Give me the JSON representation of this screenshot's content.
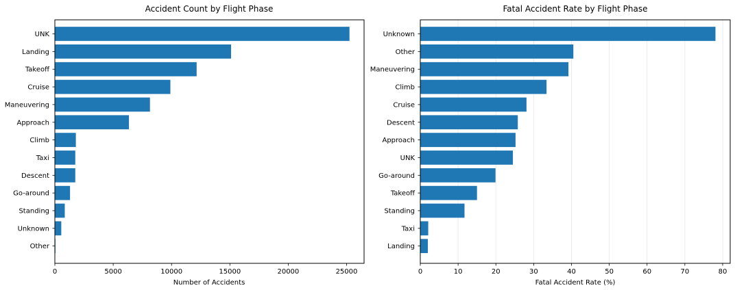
{
  "chart_data": [
    {
      "type": "bar",
      "orientation": "horizontal",
      "title": "Accident Count by Flight Phase",
      "xlabel": "Number of Accidents",
      "ylabel": "",
      "categories": [
        "UNK",
        "Landing",
        "Takeoff",
        "Cruise",
        "Maneuvering",
        "Approach",
        "Climb",
        "Taxi",
        "Descent",
        "Go-around",
        "Standing",
        "Unknown",
        "Other"
      ],
      "values": [
        25250,
        15100,
        12150,
        9900,
        8150,
        6350,
        1800,
        1750,
        1750,
        1300,
        850,
        550,
        50
      ],
      "xlim": [
        0,
        26500
      ],
      "xticks": [
        0,
        5000,
        10000,
        15000,
        20000,
        25000
      ],
      "xtick_labels": [
        "0",
        "5000",
        "10000",
        "15000",
        "20000",
        "25000"
      ],
      "grid": false,
      "color": "#1f77b4"
    },
    {
      "type": "bar",
      "orientation": "horizontal",
      "title": "Fatal Accident Rate by Flight Phase",
      "xlabel": "Fatal Accident Rate (%)",
      "ylabel": "",
      "categories": [
        "Unknown",
        "Other",
        "Maneuvering",
        "Climb",
        "Cruise",
        "Descent",
        "Approach",
        "UNK",
        "Go-around",
        "Takeoff",
        "Standing",
        "Taxi",
        "Landing"
      ],
      "values": [
        78.1,
        40.5,
        39.2,
        33.4,
        28.1,
        25.8,
        25.2,
        24.5,
        19.9,
        15.0,
        11.7,
        2.1,
        2.0
      ],
      "xlim": [
        0,
        82
      ],
      "xticks": [
        0,
        10,
        20,
        30,
        40,
        50,
        60,
        70,
        80
      ],
      "xtick_labels": [
        "0",
        "10",
        "20",
        "30",
        "40",
        "50",
        "60",
        "70",
        "80"
      ],
      "grid": true,
      "color": "#1f77b4"
    }
  ]
}
